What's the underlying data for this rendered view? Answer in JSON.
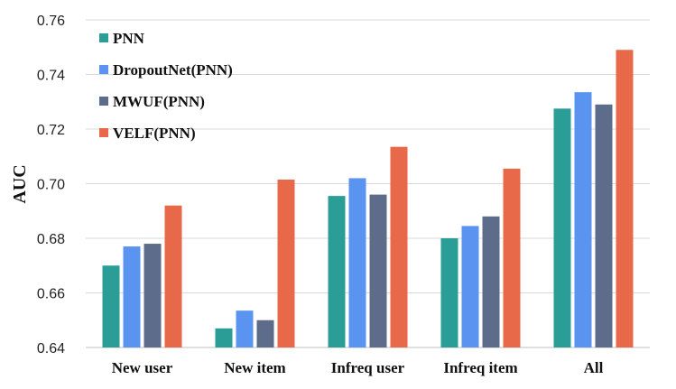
{
  "chart_data": {
    "type": "bar",
    "title": "",
    "xlabel": "",
    "ylabel": "AUC",
    "ylim": [
      0.64,
      0.76
    ],
    "yticks": [
      "0.64",
      "0.66",
      "0.68",
      "0.70",
      "0.72",
      "0.74",
      "0.76"
    ],
    "grid": true,
    "legend_position": "top-left",
    "categories": [
      "New user",
      "New item",
      "Infreq user",
      "Infreq item",
      "All"
    ],
    "series": [
      {
        "name": "PNN",
        "color": "#2a9d97",
        "values": [
          0.67,
          0.647,
          0.6955,
          0.68,
          0.7275
        ]
      },
      {
        "name": "DropoutNet(PNN)",
        "color": "#5b93f0",
        "values": [
          0.677,
          0.6535,
          0.702,
          0.6845,
          0.7335
        ]
      },
      {
        "name": "MWUF(PNN)",
        "color": "#5c6c8a",
        "values": [
          0.678,
          0.65,
          0.696,
          0.688,
          0.729
        ]
      },
      {
        "name": "VELF(PNN)",
        "color": "#e8694a",
        "values": [
          0.692,
          0.7015,
          0.7135,
          0.7055,
          0.749
        ]
      }
    ]
  }
}
